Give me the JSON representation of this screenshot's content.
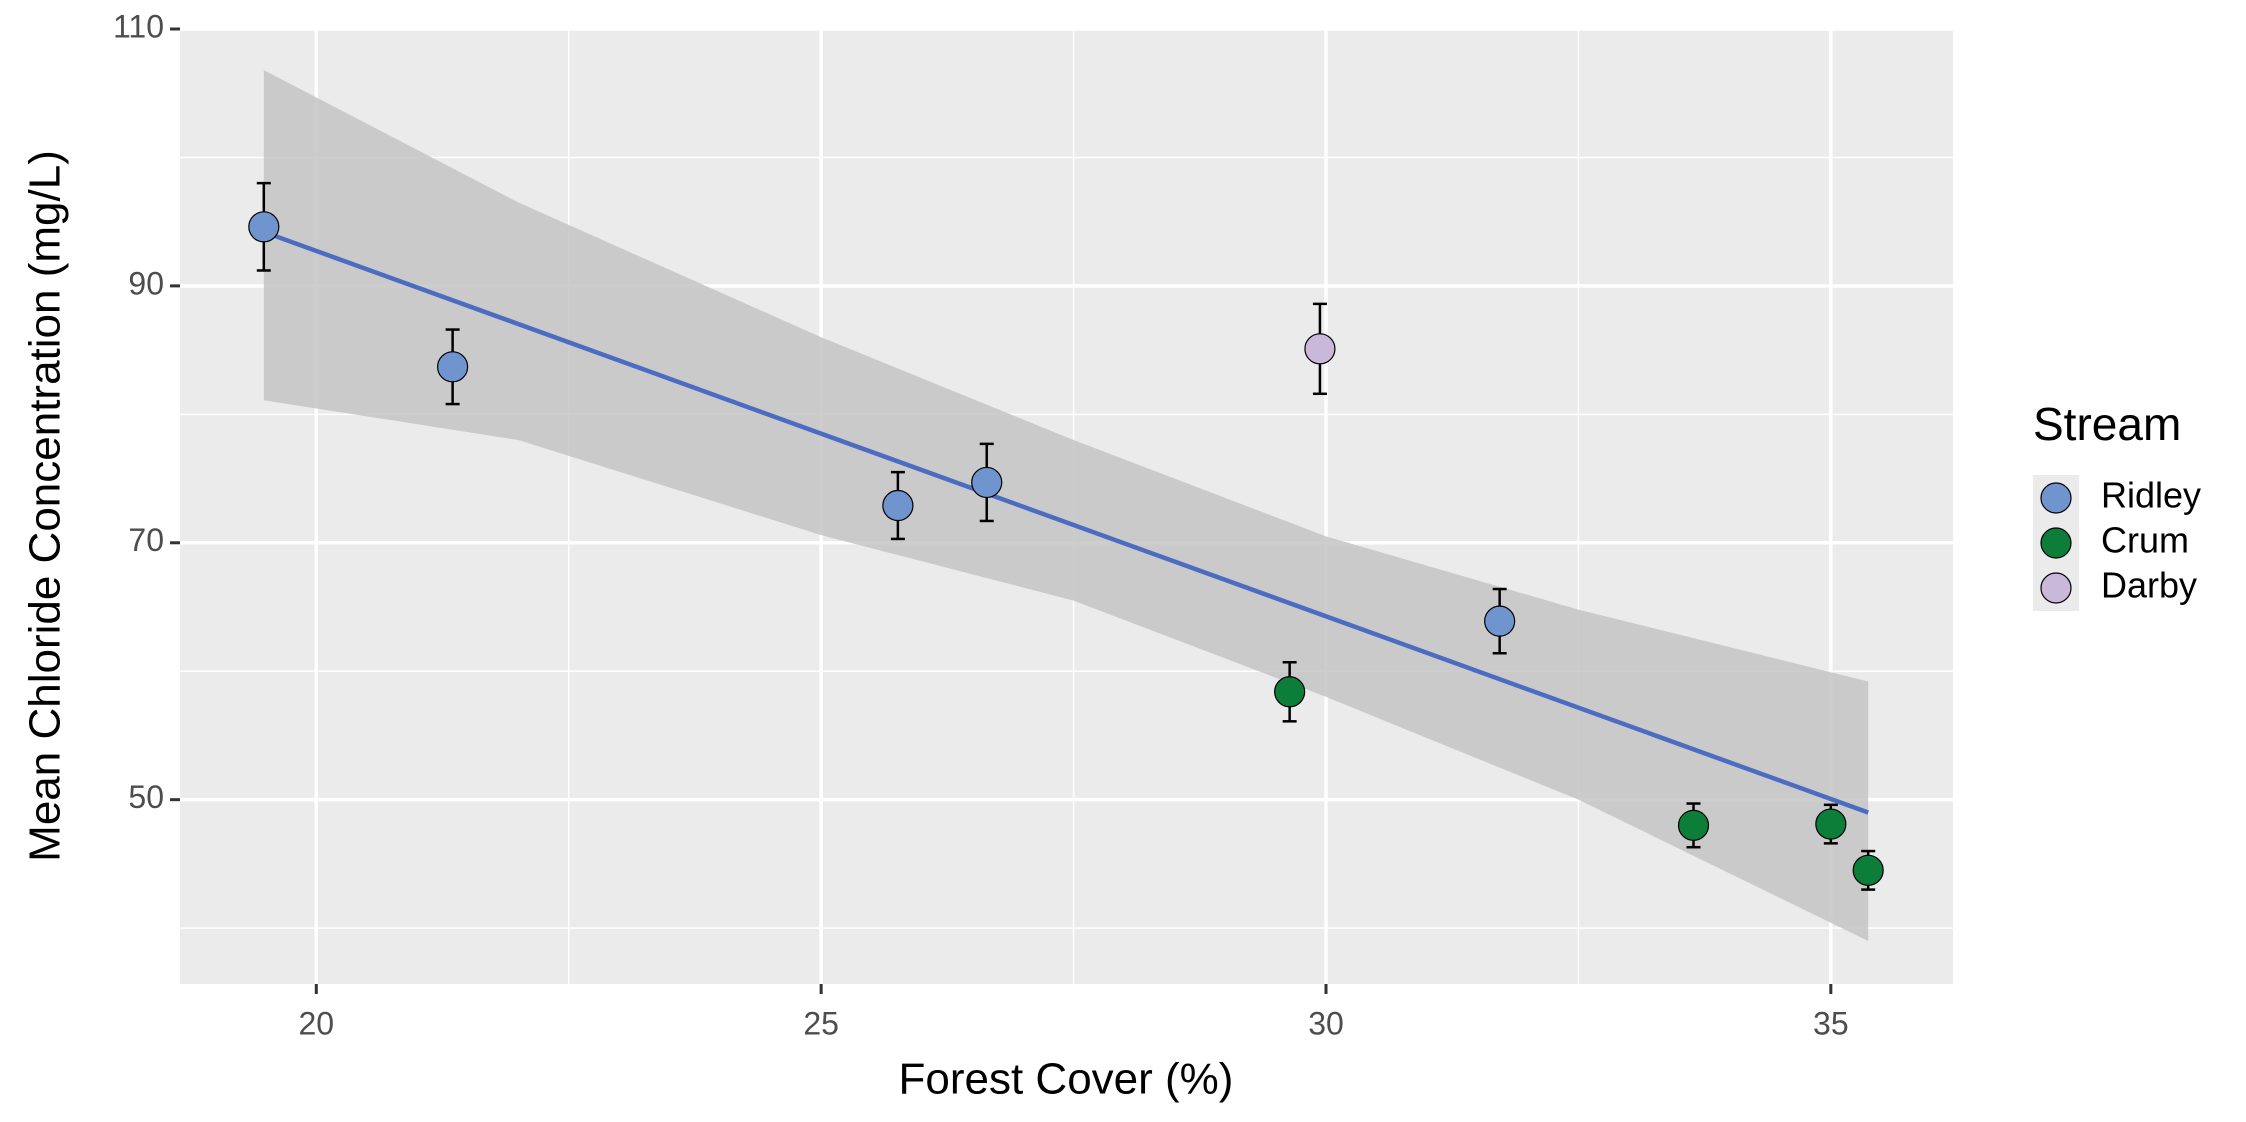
{
  "chart_data": {
    "type": "scatter",
    "x_label": "Forest Cover (%)",
    "y_label": "Mean Chloride Concentration (mg/L)",
    "xlim": [
      18.65,
      36.21
    ],
    "ylim": [
      35.65,
      110
    ],
    "xticks": [
      20,
      25,
      30,
      35
    ],
    "yticks": [
      50,
      70,
      90,
      110
    ],
    "minor_xticks": [
      22.5,
      27.5,
      32.5
    ],
    "minor_yticks": [
      40,
      60,
      80,
      100
    ],
    "grid": true,
    "legend_title": "Stream",
    "legend": "right",
    "series": [
      {
        "name": "Ridley",
        "color": "#7094cd",
        "x": [
          19.48,
          21.35,
          25.76,
          26.64,
          31.72
        ],
        "values": [
          94.6,
          83.7,
          72.9,
          74.7,
          63.9
        ],
        "errors": [
          3.4,
          2.9,
          2.6,
          3.0,
          2.5
        ]
      },
      {
        "name": "Crum",
        "color": "#0d7e3a",
        "x": [
          29.64,
          33.64,
          35.0,
          35.37
        ],
        "values": [
          58.4,
          48.0,
          48.1,
          44.5
        ],
        "errors": [
          2.3,
          1.7,
          1.5,
          1.5
        ]
      },
      {
        "name": "Darby",
        "color": "#c9b8d9",
        "x": [
          29.94
        ],
        "values": [
          85.1
        ],
        "errors": [
          3.5
        ]
      }
    ],
    "fit": {
      "color": "#4b6cc1",
      "x": [
        19.48,
        35.37
      ],
      "values": [
        94.2,
        49.0
      ]
    },
    "ribbon": {
      "color": "#c4c4c4",
      "x": [
        19.48,
        22,
        25,
        27.5,
        30,
        32.5,
        35.37
      ],
      "upper": [
        106.8,
        96.5,
        86.0,
        78.0,
        70.5,
        64.8,
        59.2
      ],
      "lower": [
        81.1,
        78.0,
        70.6,
        65.5,
        58.0,
        50.0,
        39.0
      ]
    }
  }
}
